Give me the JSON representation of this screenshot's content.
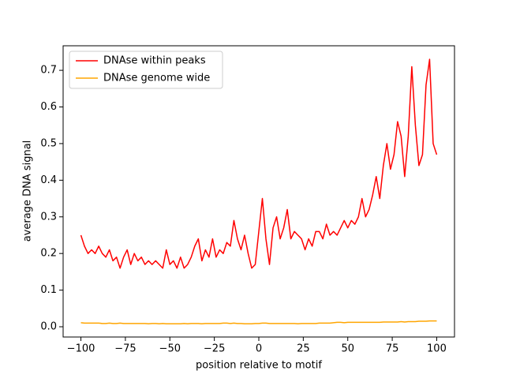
{
  "chart_data": {
    "type": "line",
    "x_label": "position relative to motif",
    "y_label": "average DNA signal",
    "x": [
      -100,
      -98,
      -96,
      -94,
      -92,
      -90,
      -88,
      -86,
      -84,
      -82,
      -80,
      -78,
      -76,
      -74,
      -72,
      -70,
      -68,
      -66,
      -64,
      -62,
      -60,
      -58,
      -56,
      -54,
      -52,
      -50,
      -48,
      -46,
      -44,
      -42,
      -40,
      -38,
      -36,
      -34,
      -32,
      -30,
      -28,
      -26,
      -24,
      -22,
      -20,
      -18,
      -16,
      -14,
      -12,
      -10,
      -8,
      -6,
      -4,
      -2,
      0,
      2,
      4,
      6,
      8,
      10,
      12,
      14,
      16,
      18,
      20,
      22,
      24,
      26,
      28,
      30,
      32,
      34,
      36,
      38,
      40,
      42,
      44,
      46,
      48,
      50,
      52,
      54,
      56,
      58,
      60,
      62,
      64,
      66,
      68,
      70,
      72,
      74,
      76,
      78,
      80,
      82,
      84,
      86,
      88,
      90,
      92,
      94,
      96,
      98,
      100
    ],
    "series": [
      {
        "name": "DNAse within peaks",
        "color": "#ff0000",
        "values": [
          0.25,
          0.22,
          0.2,
          0.21,
          0.2,
          0.22,
          0.2,
          0.19,
          0.21,
          0.18,
          0.19,
          0.16,
          0.19,
          0.21,
          0.17,
          0.2,
          0.18,
          0.19,
          0.17,
          0.18,
          0.17,
          0.18,
          0.17,
          0.16,
          0.21,
          0.17,
          0.18,
          0.16,
          0.19,
          0.16,
          0.17,
          0.19,
          0.22,
          0.24,
          0.18,
          0.21,
          0.19,
          0.24,
          0.19,
          0.21,
          0.2,
          0.23,
          0.22,
          0.29,
          0.24,
          0.21,
          0.25,
          0.2,
          0.16,
          0.17,
          0.26,
          0.35,
          0.24,
          0.17,
          0.27,
          0.3,
          0.24,
          0.27,
          0.32,
          0.24,
          0.26,
          0.25,
          0.24,
          0.21,
          0.24,
          0.22,
          0.26,
          0.26,
          0.24,
          0.28,
          0.25,
          0.26,
          0.25,
          0.27,
          0.29,
          0.27,
          0.29,
          0.28,
          0.3,
          0.35,
          0.3,
          0.32,
          0.36,
          0.41,
          0.35,
          0.44,
          0.5,
          0.43,
          0.47,
          0.56,
          0.52,
          0.41,
          0.52,
          0.71,
          0.55,
          0.44,
          0.47,
          0.66,
          0.73,
          0.5,
          0.47
        ]
      },
      {
        "name": "DNAse genome wide",
        "color": "#ffa500",
        "values": [
          0.011,
          0.01,
          0.01,
          0.01,
          0.01,
          0.01,
          0.009,
          0.009,
          0.01,
          0.009,
          0.009,
          0.01,
          0.009,
          0.009,
          0.009,
          0.009,
          0.009,
          0.009,
          0.009,
          0.008,
          0.009,
          0.009,
          0.008,
          0.009,
          0.008,
          0.008,
          0.008,
          0.008,
          0.008,
          0.009,
          0.008,
          0.009,
          0.009,
          0.009,
          0.008,
          0.009,
          0.009,
          0.009,
          0.009,
          0.009,
          0.01,
          0.01,
          0.009,
          0.01,
          0.009,
          0.009,
          0.008,
          0.008,
          0.008,
          0.009,
          0.009,
          0.01,
          0.01,
          0.009,
          0.009,
          0.009,
          0.009,
          0.009,
          0.009,
          0.009,
          0.009,
          0.008,
          0.009,
          0.009,
          0.009,
          0.009,
          0.009,
          0.01,
          0.01,
          0.01,
          0.01,
          0.011,
          0.012,
          0.012,
          0.011,
          0.012,
          0.012,
          0.012,
          0.012,
          0.012,
          0.012,
          0.012,
          0.012,
          0.012,
          0.012,
          0.013,
          0.013,
          0.013,
          0.013,
          0.013,
          0.014,
          0.013,
          0.014,
          0.014,
          0.014,
          0.015,
          0.015,
          0.015,
          0.016,
          0.016,
          0.016
        ]
      }
    ],
    "xlim": [
      -110,
      110
    ],
    "ylim": [
      -0.028,
      0.767
    ],
    "xticks": [
      {
        "value": -100,
        "label": "−100"
      },
      {
        "value": -75,
        "label": "−75"
      },
      {
        "value": -50,
        "label": "−50"
      },
      {
        "value": -25,
        "label": "−25"
      },
      0,
      25,
      50,
      75,
      100
    ],
    "yticks": [
      {
        "value": 0,
        "label": "0.0"
      },
      0.1,
      0.2,
      0.3,
      0.4,
      0.5,
      0.6,
      0.7
    ],
    "legend": "upper left"
  }
}
